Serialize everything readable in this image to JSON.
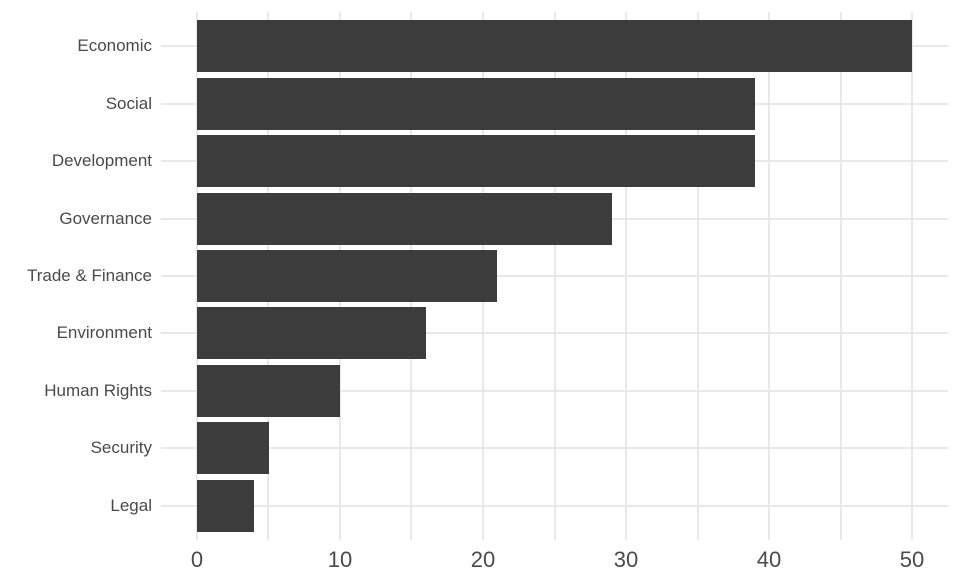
{
  "chart_data": {
    "type": "bar",
    "orientation": "horizontal",
    "title": "",
    "xlabel": "",
    "ylabel": "",
    "categories": [
      "Economic",
      "Social",
      "Development",
      "Governance",
      "Trade & Finance",
      "Environment",
      "Human Rights",
      "Security",
      "Legal"
    ],
    "values": [
      50,
      39,
      39,
      29,
      21,
      16,
      10,
      5,
      4
    ],
    "xlim": [
      0,
      50
    ],
    "x_tick_labels": [
      "0",
      "10",
      "20",
      "30",
      "40",
      "50"
    ],
    "x_tick_values": [
      0,
      10,
      20,
      30,
      40,
      50
    ],
    "x_grid_step": 5,
    "grid": "on",
    "legend": "none",
    "gridlines": {
      "vertical_at": [
        0,
        5,
        10,
        15,
        20,
        25,
        30,
        35,
        40,
        45,
        50
      ],
      "horizontal": "at each category center"
    },
    "colors": {
      "bar": "#3c3c3c",
      "grid": "#e8e8e8",
      "axis_text": "#4a4a4a",
      "background": "#ffffff"
    }
  }
}
